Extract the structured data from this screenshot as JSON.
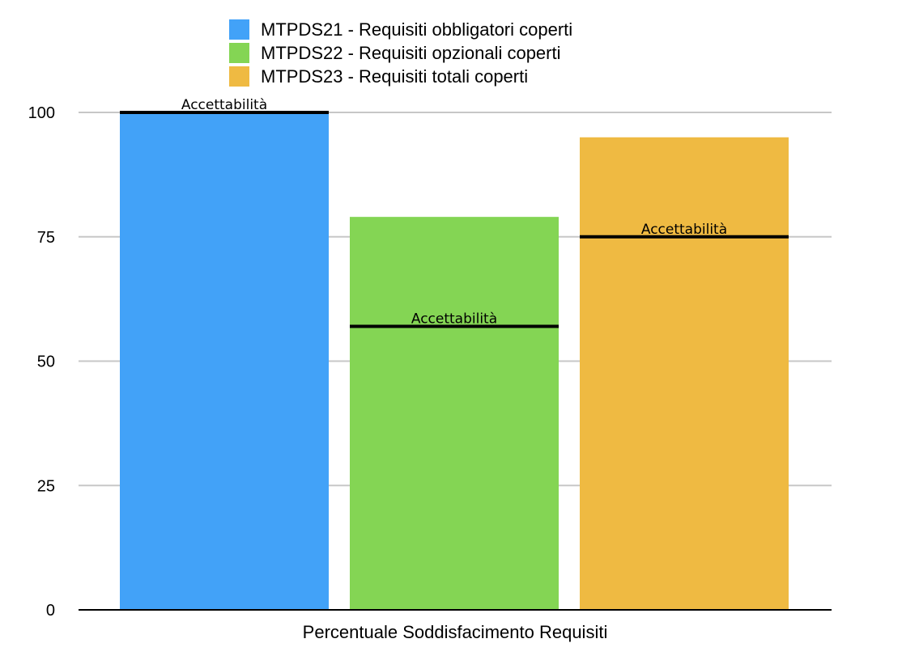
{
  "chart_data": {
    "type": "bar",
    "xlabel": "Percentuale Soddisfacimento Requisiti",
    "ylabel": "",
    "ylim": [
      0,
      100
    ],
    "yticks": [
      0,
      25,
      50,
      75,
      100
    ],
    "grid": true,
    "legend_position": "top",
    "series": [
      {
        "name": "MTPDS21 - Requisiti obbligatori coperti",
        "value": 100,
        "threshold": 100,
        "threshold_label": "Accettabilità",
        "color": "#42A2F8"
      },
      {
        "name": "MTPDS22 -  Requisiti opzionali coperti",
        "value": 79,
        "threshold": 57,
        "threshold_label": "Accettabilità",
        "color": "#84D554"
      },
      {
        "name": "MTPDS23 -  Requisiti totali coperti",
        "value": 95,
        "threshold": 75,
        "threshold_label": "Accettabilità",
        "color": "#EFBA42"
      }
    ]
  }
}
